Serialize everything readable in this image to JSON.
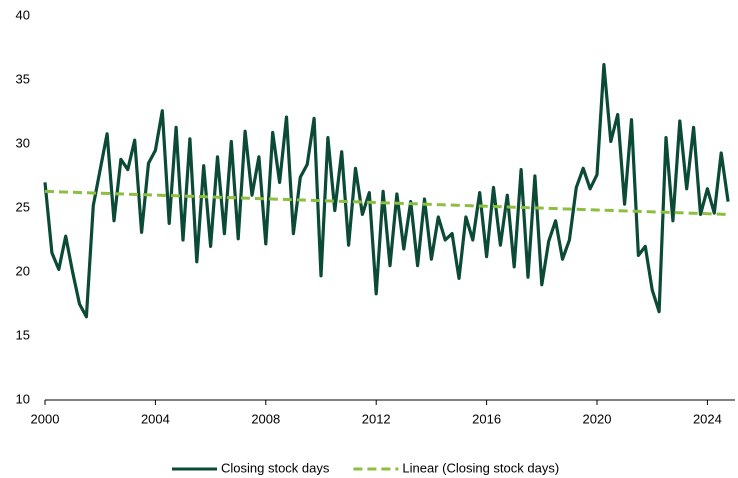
{
  "chart_data": {
    "type": "line",
    "x": [
      2000,
      2000.25,
      2000.5,
      2000.75,
      2001,
      2001.25,
      2001.5,
      2001.75,
      2002,
      2002.25,
      2002.5,
      2002.75,
      2003,
      2003.25,
      2003.5,
      2003.75,
      2004,
      2004.25,
      2004.5,
      2004.75,
      2005,
      2005.25,
      2005.5,
      2005.75,
      2006,
      2006.25,
      2006.5,
      2006.75,
      2007,
      2007.25,
      2007.5,
      2007.75,
      2008,
      2008.25,
      2008.5,
      2008.75,
      2009,
      2009.25,
      2009.5,
      2009.75,
      2010,
      2010.25,
      2010.5,
      2010.75,
      2011,
      2011.25,
      2011.5,
      2011.75,
      2012,
      2012.25,
      2012.5,
      2012.75,
      2013,
      2013.25,
      2013.5,
      2013.75,
      2014,
      2014.25,
      2014.5,
      2014.75,
      2015,
      2015.25,
      2015.5,
      2015.75,
      2016,
      2016.25,
      2016.5,
      2016.75,
      2017,
      2017.25,
      2017.5,
      2017.75,
      2018,
      2018.25,
      2018.5,
      2018.75,
      2019,
      2019.25,
      2019.5,
      2019.75,
      2020,
      2020.25,
      2020.5,
      2020.75,
      2021,
      2021.25,
      2021.5,
      2021.75,
      2022,
      2022.25,
      2022.5,
      2022.75,
      2023,
      2023.25,
      2023.5,
      2023.75,
      2024,
      2024.25,
      2024.5,
      2024.75
    ],
    "series": [
      {
        "name": "Closing stock days",
        "color": "#0b4a36",
        "values": [
          27,
          21.5,
          20.2,
          22.8,
          20,
          17.5,
          16.5,
          25.2,
          28,
          30.8,
          24,
          28.8,
          28,
          30.3,
          23.1,
          28.5,
          29.5,
          32.6,
          23.8,
          31.3,
          22.5,
          30.4,
          20.8,
          28.3,
          22,
          29,
          23,
          30.2,
          22.6,
          31,
          26,
          29,
          22.2,
          30.9,
          27,
          32.1,
          23,
          27.4,
          28.4,
          32,
          19.7,
          30.5,
          24.8,
          29.4,
          22.1,
          28.1,
          24.5,
          26.2,
          18.3,
          26.3,
          20.5,
          26.1,
          21.8,
          25.5,
          20.5,
          25.7,
          21,
          24.3,
          22.5,
          23,
          19.5,
          24.3,
          22.5,
          26.2,
          21.2,
          26.6,
          22.1,
          26,
          20.4,
          28,
          19.6,
          27.5,
          19,
          22.4,
          24,
          21,
          22.5,
          26.6,
          28.1,
          26.5,
          27.6,
          36.2,
          30.2,
          32.3,
          25.3,
          31.9,
          21.3,
          22,
          18.6,
          16.9,
          30.5,
          24,
          31.8,
          26.5,
          31.3,
          24.5,
          26.5,
          24.6,
          29.3,
          25.5
        ]
      },
      {
        "name": "Linear (Closing stock days)",
        "color": "#8cbf3f",
        "dashed": true,
        "x": [
          2000,
          2024.75
        ],
        "values": [
          26.3,
          24.5
        ]
      }
    ],
    "xlim": [
      2000,
      2025
    ],
    "xticks": [
      2000,
      2004,
      2008,
      2012,
      2016,
      2020,
      2024
    ],
    "ylim": [
      10,
      40
    ],
    "yticks": [
      10,
      15,
      20,
      25,
      30,
      35,
      40
    ],
    "legend": "bottom"
  }
}
